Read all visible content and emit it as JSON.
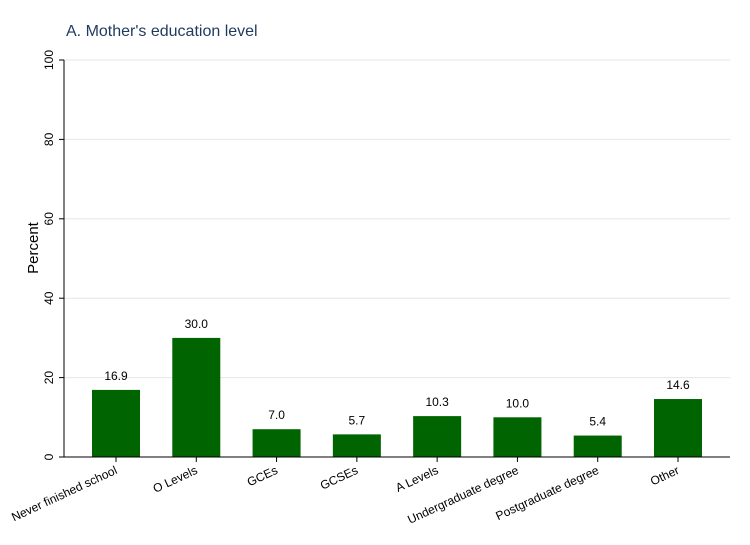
{
  "chart_data": {
    "type": "bar",
    "title": "A. Mother's education level",
    "ylabel": "Percent",
    "xlabel": "",
    "ylim": [
      0,
      100
    ],
    "yticks": [
      0,
      20,
      40,
      60,
      80,
      100
    ],
    "grid": true,
    "bar_color": "#006400",
    "categories": [
      "Never finished school",
      "O Levels",
      "GCEs",
      "GCSEs",
      "A Levels",
      "Undergraduate degree",
      "Postgraduate degree",
      "Other"
    ],
    "values": [
      16.9,
      30.0,
      7.0,
      5.7,
      10.3,
      10.0,
      5.4,
      14.6
    ],
    "value_labels": [
      "16.9",
      "30.0",
      "7.0",
      "5.7",
      "10.3",
      "10.0",
      "5.4",
      "14.6"
    ]
  }
}
